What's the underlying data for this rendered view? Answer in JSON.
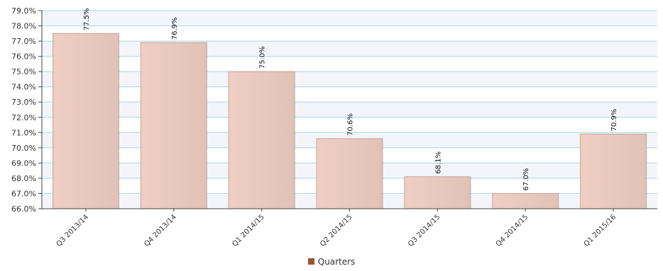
{
  "chart_data": {
    "type": "bar",
    "categories": [
      "Q3 2013/14",
      "Q4 2013/14",
      "Q1 2014/15",
      "Q2 2014/15",
      "Q3 2014/15",
      "Q4 2014/15",
      "Q1 2015/16"
    ],
    "series": [
      {
        "name": "Quarters",
        "values": [
          77.5,
          76.9,
          75.0,
          70.6,
          68.1,
          67.0,
          70.9
        ],
        "data_labels": [
          "77.5%",
          "76.9%",
          "75.0%",
          "70.6%",
          "68.1%",
          "67.0%",
          "70.9%"
        ]
      }
    ],
    "y_ticks": [
      "66.0%",
      "67.0%",
      "68.0%",
      "69.0%",
      "70.0%",
      "71.0%",
      "72.0%",
      "73.0%",
      "74.0%",
      "75.0%",
      "76.0%",
      "77.0%",
      "78.0%",
      "79.0%"
    ],
    "ylim": [
      66,
      79
    ],
    "grid": true,
    "legend_position": "bottom-center",
    "colors": {
      "bar_fill": "#e7c8bd",
      "bar_stroke": "#c9a294",
      "legend_swatch": "#a0522d",
      "grid": "#a8d8e8",
      "band": "#f4f5fb",
      "axis": "#444444"
    }
  }
}
